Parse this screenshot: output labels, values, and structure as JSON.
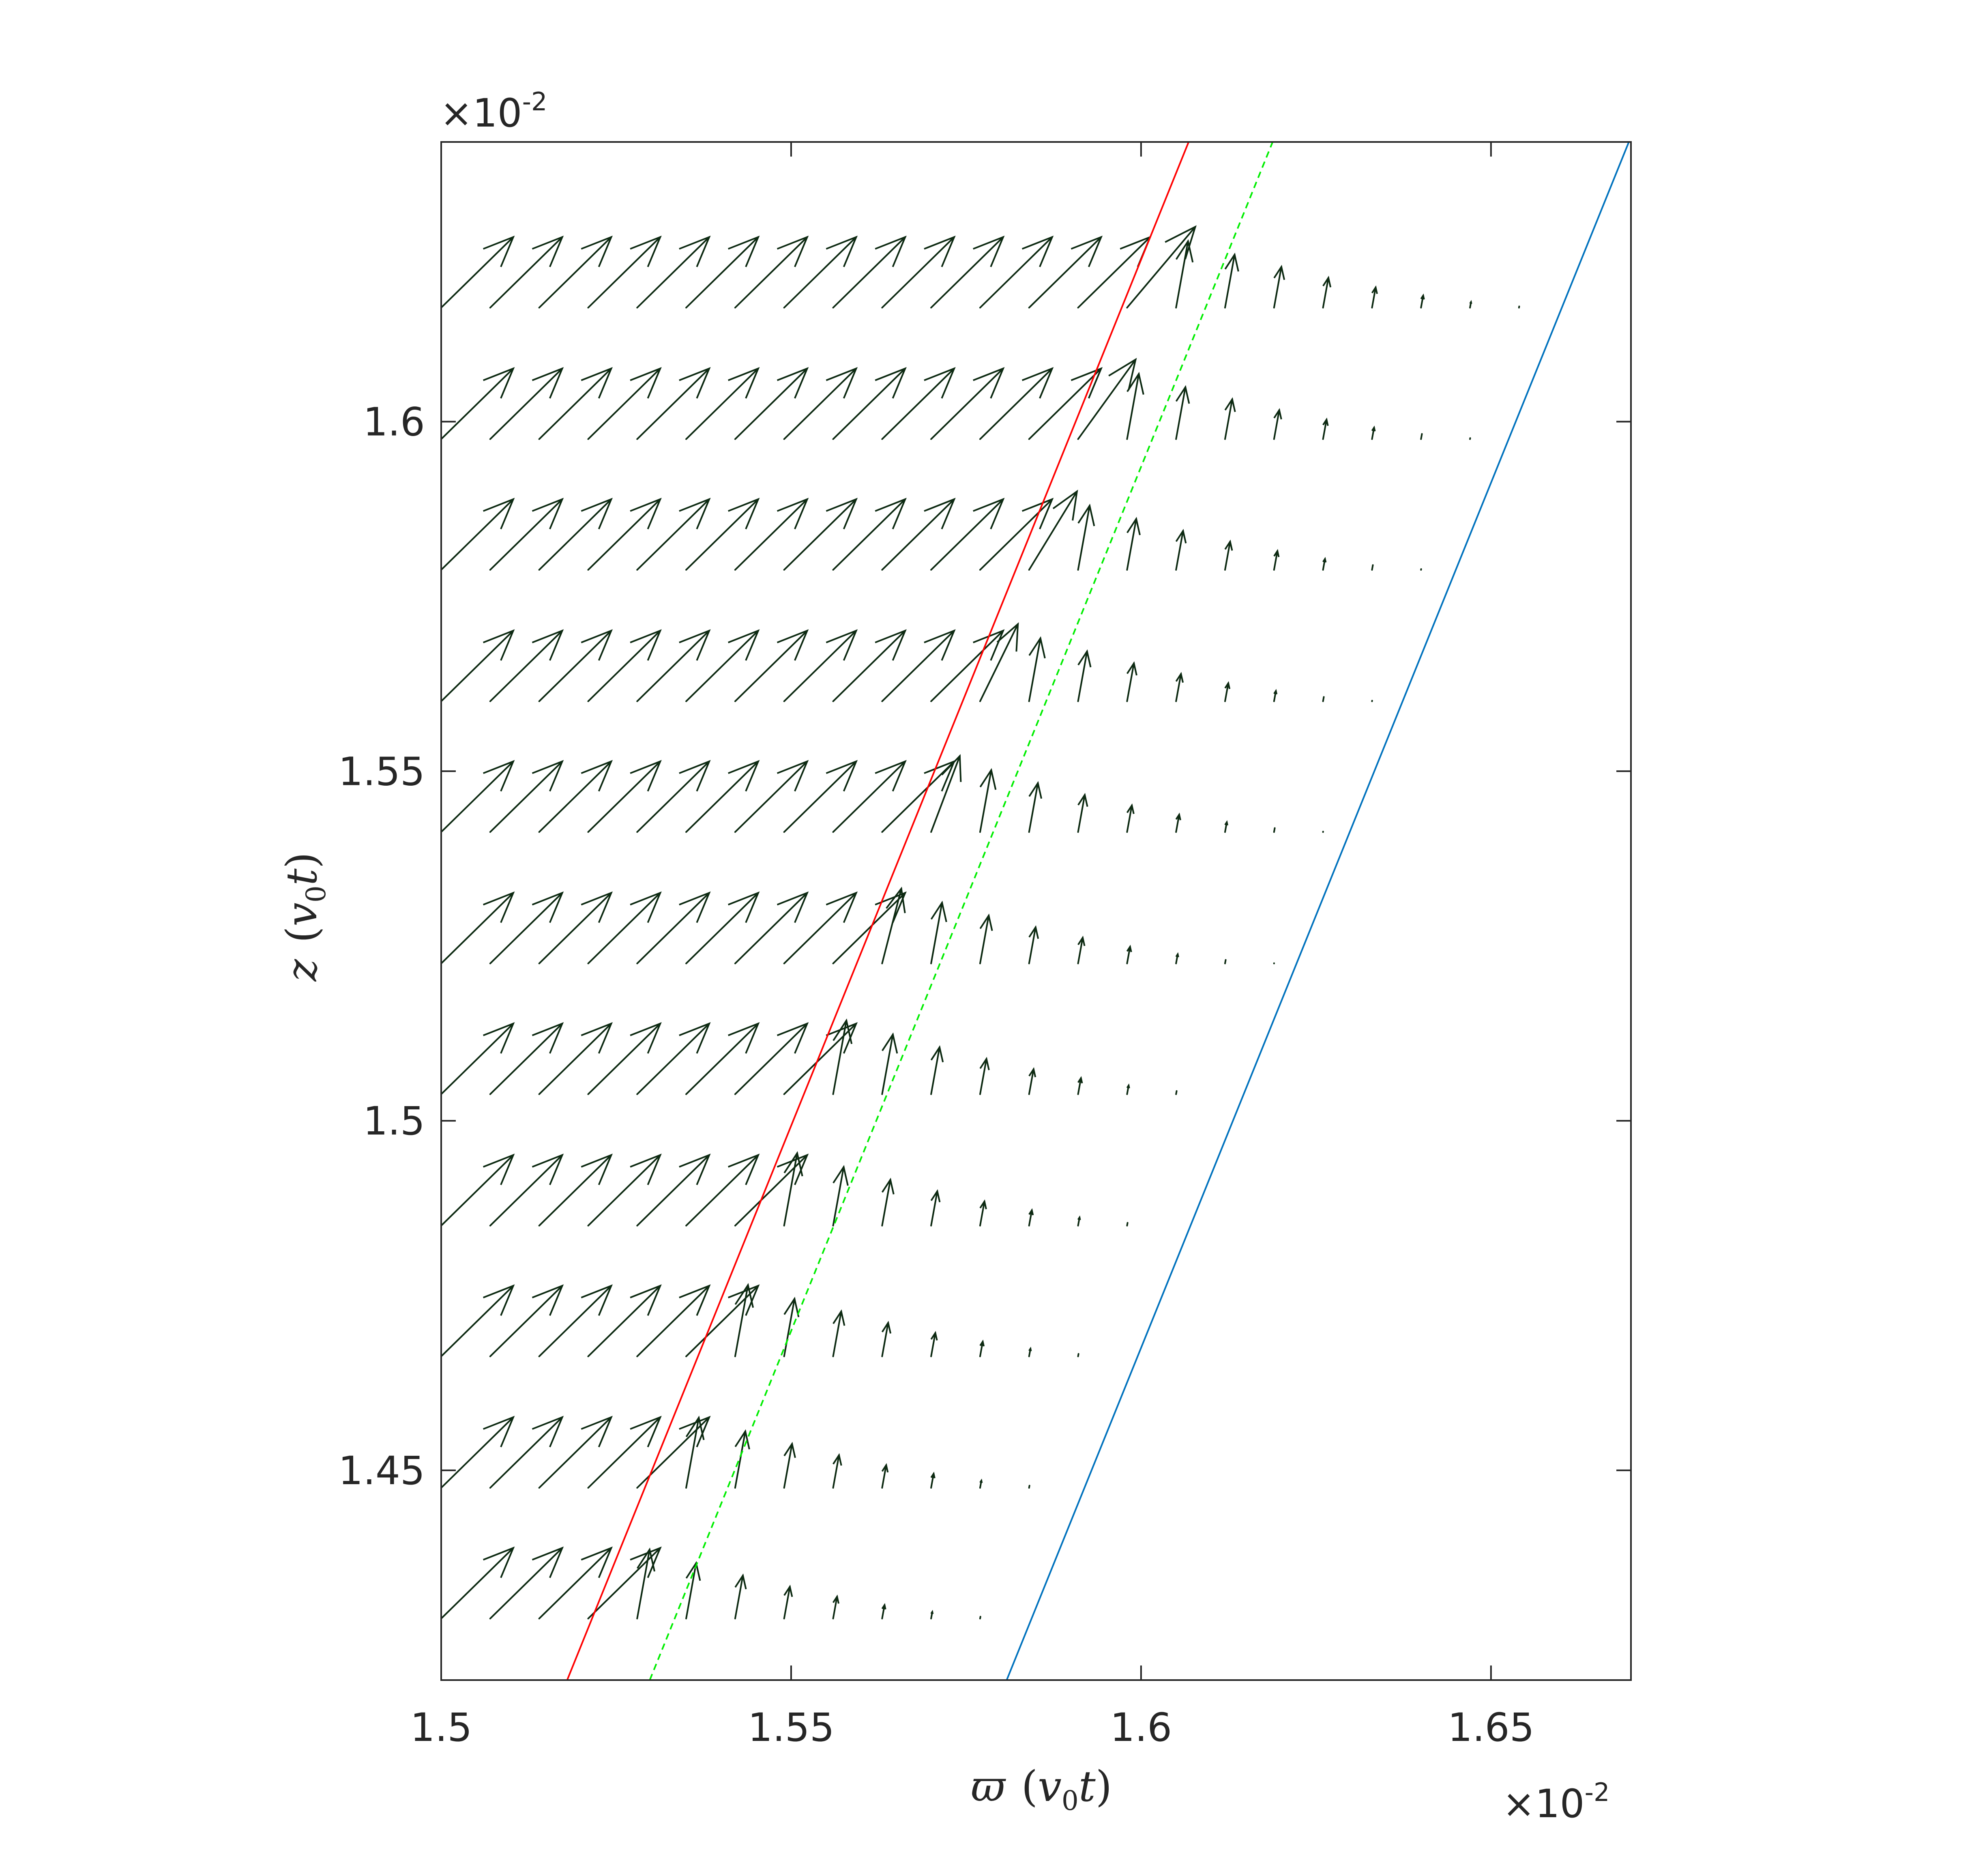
{
  "chart_data": {
    "type": "quiver",
    "xlabel": {
      "symbol": "ϖ",
      "unit_open": "(",
      "unit_v": "v",
      "unit_sub": "0",
      "unit_t": "t",
      "unit_close": ")"
    },
    "ylabel": {
      "symbol": "z",
      "unit_open": "(",
      "unit_v": "v",
      "unit_sub": "0",
      "unit_t": "t",
      "unit_close": ")"
    },
    "x_exponent": {
      "base": "×10",
      "power": "-2"
    },
    "y_exponent": {
      "base": "×10",
      "power": "-2"
    },
    "xlim": [
      1.5,
      1.67
    ],
    "ylim": [
      1.42,
      1.64
    ],
    "x_ticks": [
      1.5,
      1.55,
      1.6,
      1.65
    ],
    "x_tick_labels": [
      "1.5",
      "1.55",
      "1.6",
      "1.65"
    ],
    "y_ticks": [
      1.45,
      1.5,
      1.55,
      1.6
    ],
    "y_tick_labels": [
      "1.45",
      "1.5",
      "1.55",
      "1.6"
    ],
    "grid": false,
    "lines": [
      {
        "color": "#ff0000",
        "style": "solid",
        "x": [
          1.518,
          1.6068
        ],
        "y": [
          1.42,
          1.64
        ]
      },
      {
        "color": "#00ee00",
        "style": "dashed",
        "x": [
          1.5298,
          1.6188
        ],
        "y": [
          1.42,
          1.64
        ]
      },
      {
        "color": "#0072bd",
        "style": "solid",
        "x": [
          1.5808,
          1.6697
        ],
        "y": [
          1.42,
          1.64
        ]
      }
    ],
    "quiver": {
      "color": "#0d2a12",
      "x_start": 1.5,
      "x_step": 0.007,
      "count_per_row": 23,
      "rows_z": [
        1.4288,
        1.4475,
        1.4663,
        1.485,
        1.5038,
        1.5225,
        1.5413,
        1.56,
        1.5788,
        1.5975,
        1.6163
      ],
      "u_full": 0.0103,
      "v_full": 0.0101,
      "v_shear": 0.0118,
      "front_distance": 0.0612
    }
  }
}
